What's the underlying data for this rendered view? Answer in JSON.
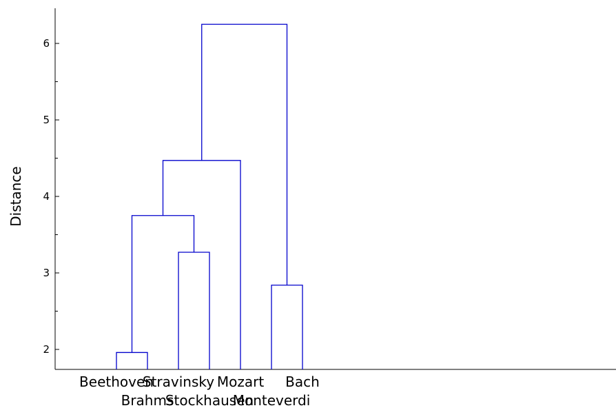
{
  "chart_data": {
    "type": "dendrogram",
    "title": "",
    "xlabel": "",
    "ylabel": "Distance",
    "ylim": [
      1.75,
      6.5
    ],
    "yticks": [
      2,
      3,
      4,
      5,
      6
    ],
    "leaves": [
      "Beethoven",
      "Brahms",
      "Stravinsky",
      "Stockhausen",
      "Mozart",
      "Monteverdi",
      "Bach"
    ],
    "merges": [
      {
        "children": [
          "Beethoven",
          "Brahms"
        ],
        "height": 1.96
      },
      {
        "children": [
          "Stravinsky",
          "Stockhausen"
        ],
        "height": 3.27
      },
      {
        "children": [
          "Beethoven+Brahms",
          "Stravinsky+Stockhausen"
        ],
        "height": 3.75
      },
      {
        "children": [
          "Beethoven+Brahms+Stravinsky+Stockhausen",
          "Mozart"
        ],
        "height": 4.47
      },
      {
        "children": [
          "Monteverdi",
          "Bach"
        ],
        "height": 2.84
      },
      {
        "children": [
          "Beethoven+Brahms+Stravinsky+Stockhausen+Mozart",
          "Monteverdi+Bach"
        ],
        "height": 6.25
      }
    ],
    "line_color": "#0000CC",
    "grid": false
  }
}
